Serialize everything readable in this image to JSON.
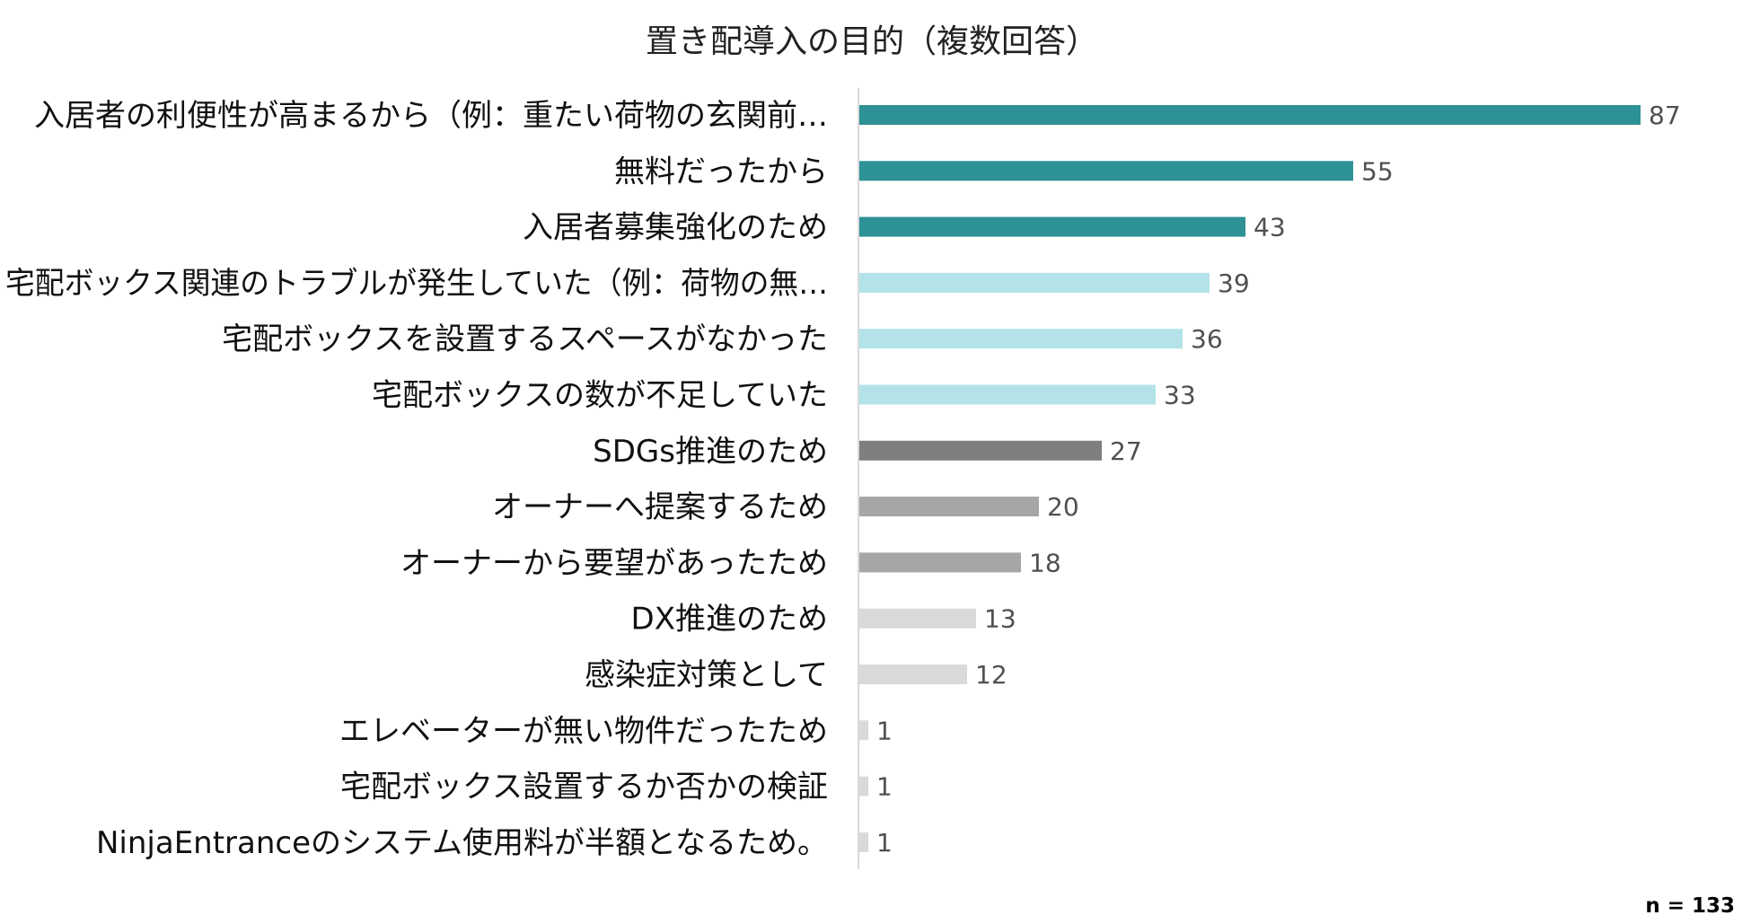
{
  "chart_data": {
    "type": "bar",
    "orientation": "horizontal",
    "title": "置き配導入の目的（複数回答）",
    "categories": [
      "入居者の利便性が高まるから（例：重たい荷物の玄関前…",
      "無料だったから",
      "入居者募集強化のため",
      "宅配ボックス関連のトラブルが発生していた（例：荷物の無…",
      "宅配ボックスを設置するスペースがなかった",
      "宅配ボックスの数が不足していた",
      "SDGs推進のため",
      "オーナーへ提案するため",
      "オーナーから要望があったため",
      "DX推進のため",
      "感染症対策として",
      "エレベーターが無い物件だったため",
      "宅配ボックス設置するか否かの検証",
      "NinjaEntranceのシステム使用料が半額となるため。"
    ],
    "values": [
      87,
      55,
      43,
      39,
      36,
      33,
      27,
      20,
      18,
      13,
      12,
      1,
      1,
      1
    ],
    "bar_colors": [
      "#2e9195",
      "#2e9195",
      "#2e9195",
      "#b3e3e8",
      "#b3e3e8",
      "#b3e3e8",
      "#7f7f7f",
      "#a6a6a6",
      "#a6a6a6",
      "#d9d9d9",
      "#d9d9d9",
      "#d9d9d9",
      "#d9d9d9",
      "#d9d9d9"
    ],
    "xlim": [
      0,
      87
    ],
    "xlabel": "",
    "ylabel": "",
    "grid": false,
    "legend": "none",
    "note": "n = 133"
  }
}
